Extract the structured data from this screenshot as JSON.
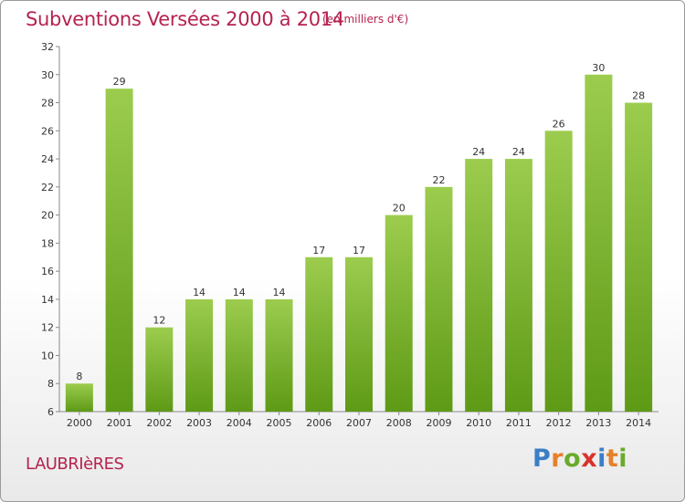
{
  "header": {
    "title": "Subventions Versées 2000 à 2014",
    "unit": "(en milliers d'€)"
  },
  "footer": {
    "town": "LAUBRIèRES",
    "logo": [
      "P",
      "r",
      "o",
      "x",
      "i",
      "t",
      "i"
    ],
    "logo_colors": [
      "#3a7ec6",
      "#e4812a",
      "#6aaa2a",
      "#d8322b",
      "#3a7ec6",
      "#e4812a",
      "#6aaa2a"
    ]
  },
  "chart_data": {
    "type": "bar",
    "title": "Subventions Versées 2000 à 2014",
    "subtitle": "(en milliers d'€)",
    "categories": [
      "2000",
      "2001",
      "2002",
      "2003",
      "2004",
      "2005",
      "2006",
      "2007",
      "2008",
      "2009",
      "2010",
      "2011",
      "2012",
      "2013",
      "2014"
    ],
    "values": [
      8,
      29,
      12,
      14,
      14,
      14,
      17,
      17,
      20,
      22,
      24,
      24,
      26,
      30,
      28
    ],
    "data_labels": [
      "8",
      "29",
      "12",
      "14",
      "14",
      "14",
      "17",
      "17",
      "20",
      "22",
      "24",
      "24",
      "26",
      "30",
      "28"
    ],
    "yticks": [
      "6",
      "8",
      "10",
      "12",
      "14",
      "16",
      "18",
      "20",
      "22",
      "24",
      "26",
      "28",
      "30",
      "32"
    ],
    "ylim": [
      6,
      32
    ],
    "grid": false,
    "colors": {
      "bar_top": "#9ccc4e",
      "bar_bottom": "#5e9a16",
      "title": "#b5234f"
    }
  }
}
